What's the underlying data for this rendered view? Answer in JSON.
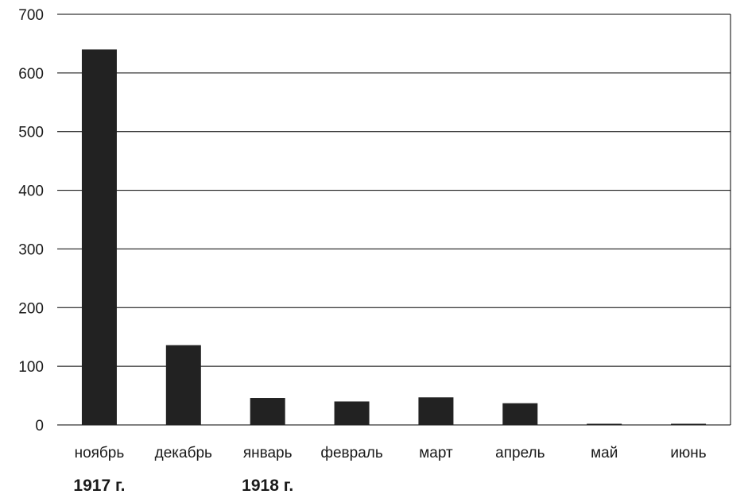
{
  "chart_data": {
    "type": "bar",
    "categories": [
      "ноябрь",
      "декабрь",
      "январь",
      "февраль",
      "март",
      "апрель",
      "май",
      "июнь"
    ],
    "values": [
      640,
      136,
      46,
      40,
      47,
      37,
      2,
      2
    ],
    "ylim": [
      0,
      700
    ],
    "yticks": [
      "0",
      "100",
      "200",
      "300",
      "400",
      "500",
      "600",
      "700"
    ],
    "grid": true,
    "bar_color": "#222222",
    "group_labels": [
      {
        "text": "1917 г.",
        "category_index": 0
      },
      {
        "text": "1918 г.",
        "category_index": 2
      }
    ]
  }
}
